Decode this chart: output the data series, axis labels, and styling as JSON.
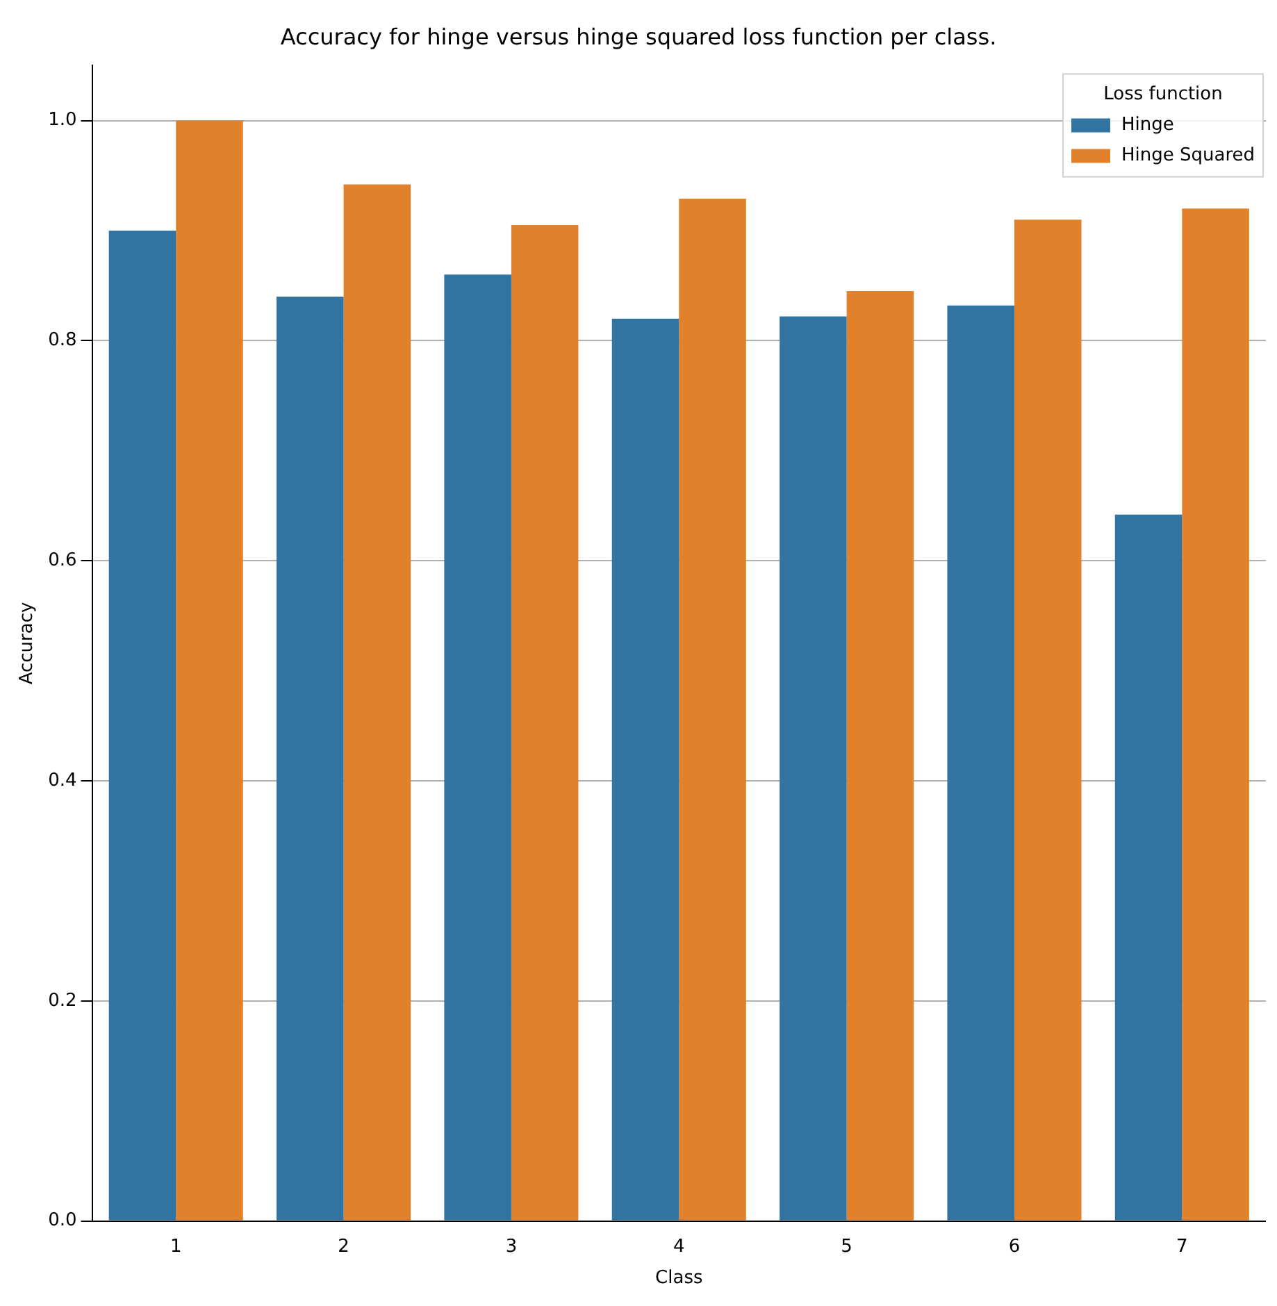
{
  "chart_data": {
    "type": "bar",
    "title": "Accuracy for hinge versus hinge squared loss function per class.",
    "xlabel": "Class",
    "ylabel": "Accuracy",
    "legend_title": "Loss function",
    "categories": [
      "1",
      "2",
      "3",
      "4",
      "5",
      "6",
      "7"
    ],
    "series": [
      {
        "name": "Hinge",
        "color": "#3274a1",
        "values": [
          0.9,
          0.84,
          0.86,
          0.82,
          0.822,
          0.832,
          0.642
        ]
      },
      {
        "name": "Hinge Squared",
        "color": "#e1812c",
        "values": [
          1.0,
          0.942,
          0.905,
          0.929,
          0.845,
          0.91,
          0.92
        ]
      }
    ],
    "ylim": [
      0,
      1.05
    ],
    "yticks": [
      {
        "value": 0,
        "label": "0.0"
      },
      0.2,
      0.4,
      0.6,
      0.8,
      {
        "value": 1,
        "label": "1.0"
      }
    ],
    "grid": "y",
    "legend": "top right"
  }
}
